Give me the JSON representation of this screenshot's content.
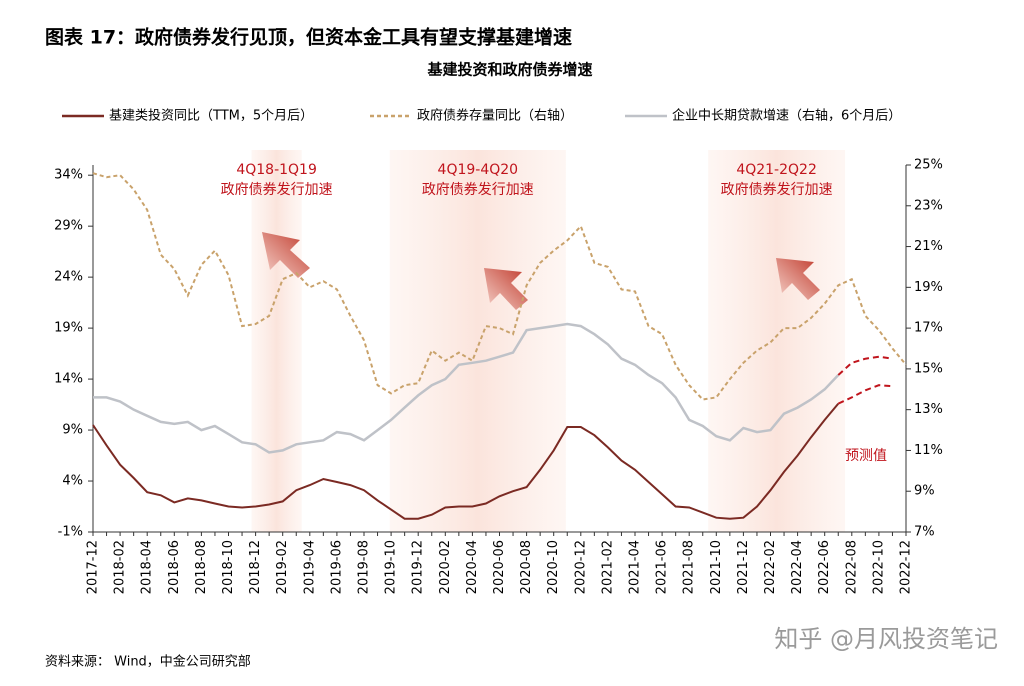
{
  "chart_data": {
    "type": "line",
    "title": "图表 17：政府债券发行见顶，但资本金工具有望支撑基建增速",
    "subtitle": "基建投资和政府债券增速",
    "source": "资料来源： Wind，中金公司研究部",
    "watermark": "知乎 @月风投资笔记",
    "forecast_label": "预测值",
    "highlights": [
      {
        "period": "4Q18-1Q19",
        "text": "政府债券发行加速"
      },
      {
        "period": "4Q19-4Q20",
        "text": "政府债券发行加速"
      },
      {
        "period": "4Q21-2Q22",
        "text": "政府债券发行加速"
      }
    ],
    "categories": [
      "2017-12",
      null,
      "2018-02",
      null,
      "2018-04",
      null,
      "2018-06",
      null,
      "2018-08",
      null,
      "2018-10",
      null,
      "2018-12",
      null,
      "2019-02",
      null,
      "2019-04",
      null,
      "2019-06",
      null,
      "2019-08",
      null,
      "2019-10",
      null,
      "2019-12",
      null,
      "2020-02",
      null,
      "2020-04",
      null,
      "2020-06",
      null,
      "2020-08",
      null,
      "2020-10",
      null,
      "2020-12",
      null,
      "2021-02",
      null,
      "2021-04",
      null,
      "2021-06",
      null,
      "2021-08",
      null,
      "2021-10",
      null,
      "2021-12",
      null,
      "2022-02",
      null,
      "2022-04",
      null,
      "2022-06",
      null,
      "2022-08",
      null,
      "2022-10",
      null,
      "2022-12"
    ],
    "ylim": [
      -1,
      35
    ],
    "yticks": [
      {
        "value": -1,
        "label": "-1%"
      },
      {
        "value": 4,
        "label": "4%"
      },
      {
        "value": 9,
        "label": "9%"
      },
      {
        "value": 14,
        "label": "14%"
      },
      {
        "value": 19,
        "label": "19%"
      },
      {
        "value": 24,
        "label": "24%"
      },
      {
        "value": 29,
        "label": "29%"
      },
      {
        "value": 34,
        "label": "34%"
      }
    ],
    "y2lim": [
      7,
      25
    ],
    "y2ticks": [
      {
        "value": 7,
        "label": "7%"
      },
      {
        "value": 9,
        "label": "9%"
      },
      {
        "value": 11,
        "label": "11%"
      },
      {
        "value": 13,
        "label": "13%"
      },
      {
        "value": 15,
        "label": "15%"
      },
      {
        "value": 17,
        "label": "17%"
      },
      {
        "value": 19,
        "label": "19%"
      },
      {
        "value": 21,
        "label": "21%"
      },
      {
        "value": 23,
        "label": "23%"
      },
      {
        "value": 25,
        "label": "25%"
      }
    ],
    "forecast_color": "#c0141c",
    "series": [
      {
        "name": "基建类投资同比（TTM，5个月后）",
        "color": "#7b2a23",
        "style": "solid",
        "values": [
          9.5,
          7.5,
          5.6,
          4.3,
          2.9,
          2.6,
          1.9,
          2.3,
          2.1,
          1.8,
          1.5,
          1.4,
          1.5,
          1.7,
          2.0,
          3.1,
          3.6,
          4.2,
          3.9,
          3.6,
          3.1,
          2.1,
          1.2,
          0.3,
          0.3,
          0.7,
          1.4,
          1.5,
          1.5,
          1.8,
          2.5,
          3.0,
          3.4,
          5.1,
          7.0,
          9.3,
          9.3,
          8.5,
          7.3,
          6.0,
          5.1,
          3.9,
          2.7,
          1.5,
          1.4,
          0.9,
          0.4,
          0.3,
          0.4,
          1.5,
          3.1,
          4.9,
          6.5,
          8.3,
          10.0,
          11.6,
          null,
          null,
          null,
          null,
          null
        ],
        "forecast": [
          null,
          null,
          null,
          null,
          null,
          null,
          null,
          null,
          null,
          null,
          null,
          null,
          null,
          null,
          null,
          null,
          null,
          null,
          null,
          null,
          null,
          null,
          null,
          null,
          null,
          null,
          null,
          null,
          null,
          null,
          null,
          null,
          null,
          null,
          null,
          null,
          null,
          null,
          null,
          null,
          null,
          null,
          null,
          null,
          null,
          null,
          null,
          null,
          null,
          null,
          null,
          null,
          null,
          null,
          null,
          11.6,
          12.2,
          12.9,
          13.4,
          13.3,
          null
        ]
      },
      {
        "name": "政府债券存量同比（右轴）",
        "color": "#c9a26b",
        "style": "dashed",
        "axis": "y2",
        "values": [
          24.6,
          24.4,
          24.5,
          23.8,
          22.8,
          20.6,
          19.9,
          18.6,
          20.1,
          20.8,
          19.6,
          17.1,
          17.2,
          17.6,
          19.4,
          19.7,
          19.0,
          19.3,
          18.9,
          17.6,
          16.4,
          14.2,
          13.8,
          14.2,
          14.3,
          15.9,
          15.4,
          15.8,
          15.4,
          17.1,
          17.0,
          16.7,
          19.1,
          20.2,
          20.8,
          21.3,
          22.0,
          20.2,
          20.0,
          18.9,
          18.8,
          17.1,
          16.7,
          15.2,
          14.2,
          13.5,
          13.6,
          14.5,
          15.3,
          15.9,
          16.3,
          17.0,
          17.0,
          17.5,
          18.2,
          19.1,
          19.4,
          17.6,
          16.9,
          16.0,
          15.2
        ]
      },
      {
        "name": "企业中长期贷款增速（右轴，6个月后）",
        "color": "#bfc2c8",
        "style": "solid",
        "axis": "y2",
        "values": [
          13.6,
          13.6,
          13.4,
          13.0,
          12.7,
          12.4,
          12.3,
          12.4,
          12.0,
          12.2,
          11.8,
          11.4,
          11.3,
          10.9,
          11.0,
          11.3,
          11.4,
          11.5,
          11.9,
          11.8,
          11.5,
          12.0,
          12.5,
          13.1,
          13.7,
          14.2,
          14.5,
          15.2,
          15.3,
          15.4,
          15.6,
          15.8,
          16.9,
          17.0,
          17.1,
          17.2,
          17.1,
          16.7,
          16.2,
          15.5,
          15.2,
          14.7,
          14.3,
          13.6,
          12.5,
          12.2,
          11.7,
          11.5,
          12.1,
          11.9,
          12.0,
          12.8,
          13.1,
          13.5,
          14.0,
          14.7,
          null,
          null,
          null,
          null,
          null
        ],
        "forecast": [
          null,
          null,
          null,
          null,
          null,
          null,
          null,
          null,
          null,
          null,
          null,
          null,
          null,
          null,
          null,
          null,
          null,
          null,
          null,
          null,
          null,
          null,
          null,
          null,
          null,
          null,
          null,
          null,
          null,
          null,
          null,
          null,
          null,
          null,
          null,
          null,
          null,
          null,
          null,
          null,
          null,
          null,
          null,
          null,
          null,
          null,
          null,
          null,
          null,
          null,
          null,
          null,
          null,
          null,
          null,
          14.7,
          15.3,
          15.5,
          15.6,
          15.5,
          null
        ]
      }
    ]
  }
}
